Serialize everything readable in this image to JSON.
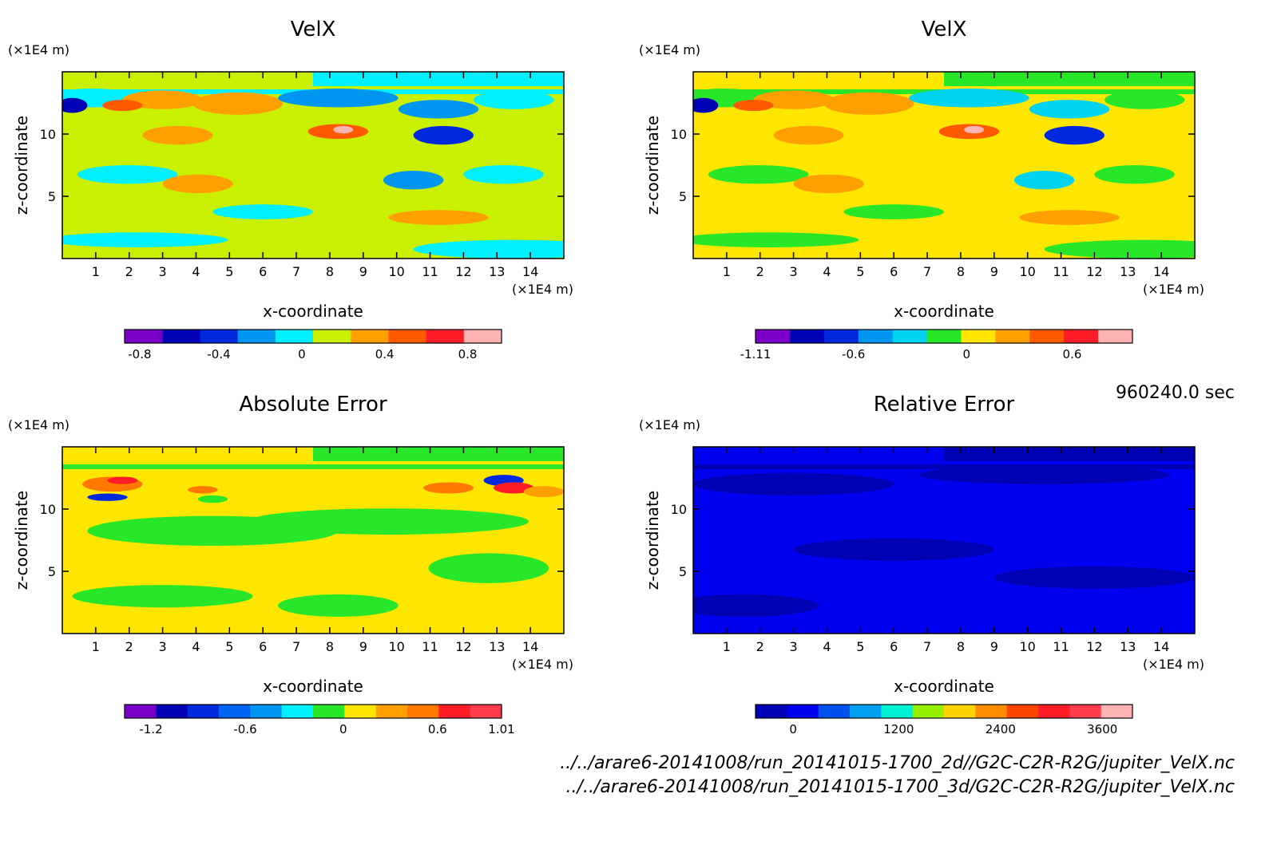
{
  "time_label": "960240.0 sec",
  "files": [
    "../../arare6-20141008/run_20141015-1700_2d//G2C-C2R-R2G/jupiter_VelX.nc",
    "../../arare6-20141008/run_20141015-1700_3d/G2C-C2R-R2G/jupiter_VelX.nc"
  ],
  "chart_data": [
    {
      "type": "heatmap",
      "title": "VelX",
      "xlabel": "x-coordinate",
      "ylabel": "z-coordinate",
      "x_unit": "(×1E4 m)",
      "y_unit": "(×1E4 m)",
      "xlim": [
        0,
        15
      ],
      "ylim": [
        0,
        15
      ],
      "x_ticks": [
        1,
        2,
        3,
        4,
        5,
        6,
        7,
        8,
        9,
        10,
        11,
        12,
        13,
        14
      ],
      "y_ticks": [
        5,
        10
      ],
      "colorbar": {
        "colors": [
          "#7a00c8",
          "#0000b4",
          "#0028dc",
          "#0096f0",
          "#00f0ff",
          "#c8f000",
          "#ffa000",
          "#ff5a00",
          "#ff1e28",
          "#ffb4b4"
        ],
        "tick_labels": [
          {
            "label": "-0.8",
            "at": 0.04
          },
          {
            "label": "-0.4",
            "at": 0.25
          },
          {
            "label": "0",
            "at": 0.47
          },
          {
            "label": "0.4",
            "at": 0.69
          },
          {
            "label": "0.8",
            "at": 0.91
          }
        ]
      },
      "field_colors": {
        "base": "#c8f000",
        "low1": "#00f0ff",
        "low2": "#0096f0",
        "low3": "#0028dc",
        "low4": "#0000b4",
        "high1": "#ffa000",
        "high2": "#ff5a00",
        "high3": "#ff1e28",
        "high4": "#ffb4b4"
      }
    },
    {
      "type": "heatmap",
      "title": "VelX",
      "xlabel": "x-coordinate",
      "ylabel": "z-coordinate",
      "x_unit": "(×1E4 m)",
      "y_unit": "(×1E4 m)",
      "xlim": [
        0,
        15
      ],
      "ylim": [
        0,
        15
      ],
      "x_ticks": [
        1,
        2,
        3,
        4,
        5,
        6,
        7,
        8,
        9,
        10,
        11,
        12,
        13,
        14
      ],
      "y_ticks": [
        5,
        10
      ],
      "colorbar": {
        "colors": [
          "#7a00c8",
          "#0000b4",
          "#0028dc",
          "#0096f0",
          "#00d2f0",
          "#28e628",
          "#ffe600",
          "#ffa000",
          "#ff5a00",
          "#ff1e28",
          "#ffb4b4"
        ],
        "tick_labels": [
          {
            "label": "-1.11",
            "at": 0.0
          },
          {
            "label": "-0.6",
            "at": 0.26
          },
          {
            "label": "0",
            "at": 0.56
          },
          {
            "label": "0.6",
            "at": 0.84
          }
        ]
      },
      "field_colors": {
        "base": "#ffe600",
        "low1": "#28e628",
        "low2": "#00d2f0",
        "low3": "#0028dc",
        "low4": "#0000b4",
        "high1": "#ffa000",
        "high2": "#ff5a00",
        "high3": "#ff1e28",
        "high4": "#ffb4b4"
      }
    },
    {
      "type": "heatmap",
      "title": "Absolute Error",
      "xlabel": "x-coordinate",
      "ylabel": "z-coordinate",
      "x_unit": "(×1E4 m)",
      "y_unit": "(×1E4 m)",
      "xlim": [
        0,
        15
      ],
      "ylim": [
        0,
        15
      ],
      "x_ticks": [
        1,
        2,
        3,
        4,
        5,
        6,
        7,
        8,
        9,
        10,
        11,
        12,
        13,
        14
      ],
      "y_ticks": [
        5,
        10
      ],
      "colorbar": {
        "colors": [
          "#7a00c8",
          "#0000b4",
          "#0028dc",
          "#0064f0",
          "#0096f0",
          "#00f0ff",
          "#28e628",
          "#ffe600",
          "#ffa000",
          "#ff7800",
          "#ff1e28",
          "#ff3c50"
        ],
        "tick_labels": [
          {
            "label": "-1.2",
            "at": 0.07
          },
          {
            "label": "-0.6",
            "at": 0.32
          },
          {
            "label": "0",
            "at": 0.58
          },
          {
            "label": "0.6",
            "at": 0.83
          },
          {
            "label": "1.01",
            "at": 1.0
          }
        ]
      },
      "field_colors": {
        "base": "#ffe600",
        "low1": "#28e628",
        "low2": "#00f0ff",
        "low3": "#0028dc",
        "low4": "#0000b4",
        "high1": "#ffa000",
        "high2": "#ff7800",
        "high3": "#ff1e28",
        "high4": "#ff3c50"
      }
    },
    {
      "type": "heatmap",
      "title": "Relative Error",
      "xlabel": "x-coordinate",
      "ylabel": "z-coordinate",
      "x_unit": "(×1E4 m)",
      "y_unit": "(×1E4 m)",
      "xlim": [
        0,
        15
      ],
      "ylim": [
        0,
        15
      ],
      "x_ticks": [
        1,
        2,
        3,
        4,
        5,
        6,
        7,
        8,
        9,
        10,
        11,
        12,
        13,
        14
      ],
      "y_ticks": [
        5,
        10
      ],
      "colorbar": {
        "colors": [
          "#0000b4",
          "#0000f0",
          "#0050f0",
          "#00a0f0",
          "#00f0d2",
          "#96f000",
          "#ffd200",
          "#ff8c00",
          "#ff4600",
          "#ff1e28",
          "#ff3c50",
          "#ffb4b4"
        ],
        "tick_labels": [
          {
            "label": "0",
            "at": 0.1
          },
          {
            "label": "1200",
            "at": 0.38
          },
          {
            "label": "2400",
            "at": 0.65
          },
          {
            "label": "3600",
            "at": 0.92
          }
        ]
      },
      "field_colors": {
        "base": "#0000f0",
        "low1": "#0000b4",
        "low2": "#0000b4",
        "low3": "#0000b4",
        "low4": "#0000b4",
        "high1": "#0000f0",
        "high2": "#0000f0",
        "high3": "#0000f0",
        "high4": "#0000f0"
      }
    }
  ]
}
